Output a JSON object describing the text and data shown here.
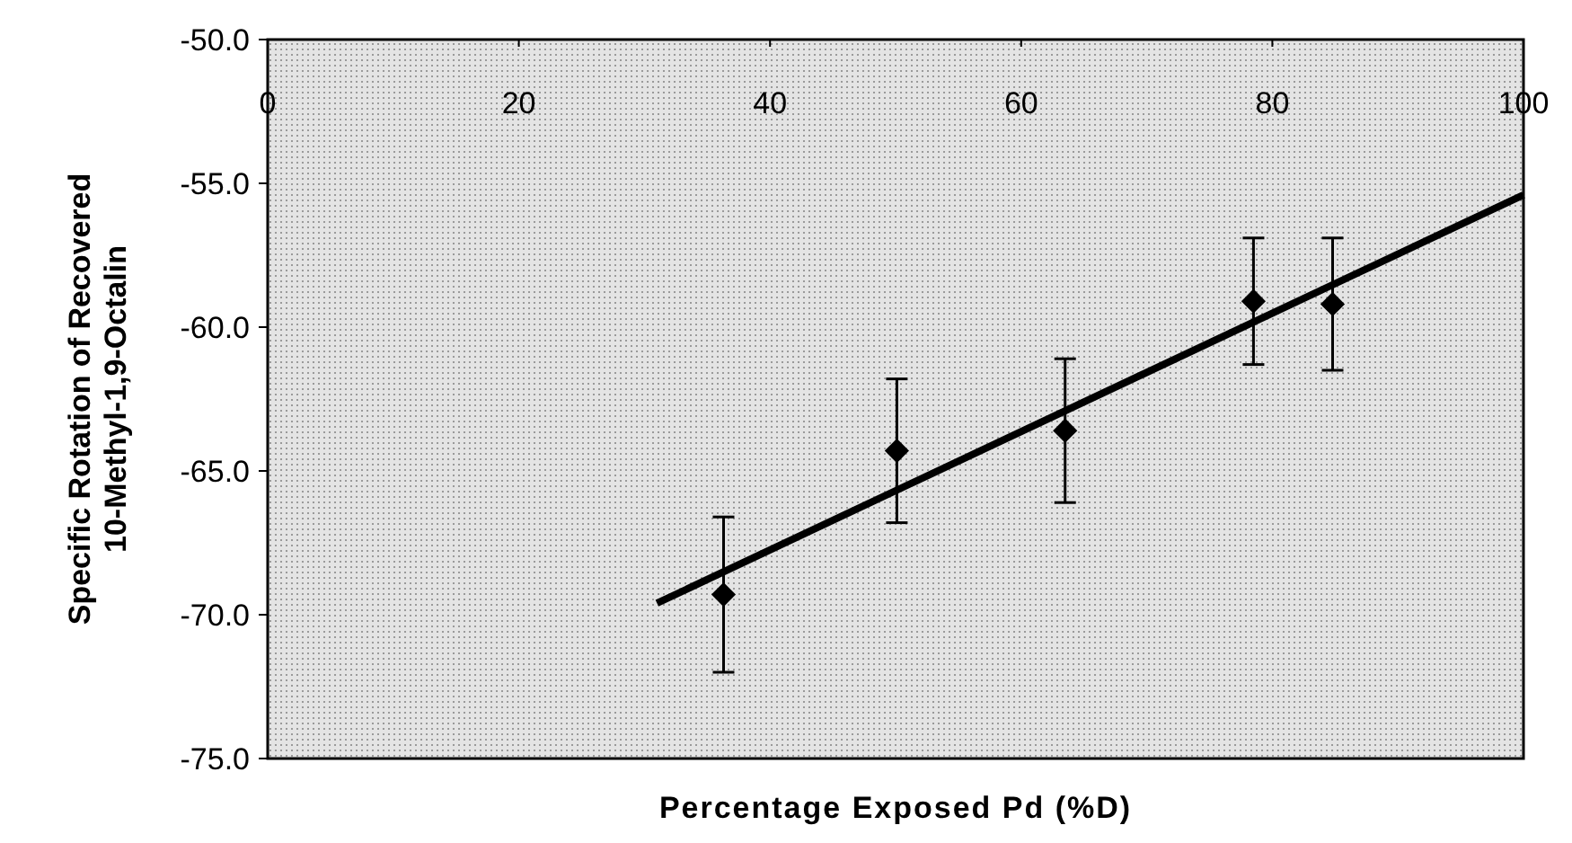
{
  "chart_data": {
    "type": "scatter",
    "xlabel": "Percentage Exposed Pd (%D)",
    "ylabel": "Specific Rotation of Recovered\n10-Methyl-1,9-Octalin",
    "xlim": [
      0,
      100
    ],
    "xticks": [
      0,
      20,
      40,
      60,
      80,
      100
    ],
    "ylim": [
      -75,
      -50
    ],
    "yticks": [
      {
        "value": -75,
        "label": "-75.0"
      },
      {
        "value": -70,
        "label": "-70.0"
      },
      {
        "value": -65,
        "label": "-65.0"
      },
      {
        "value": -60,
        "label": "-60.0"
      },
      {
        "value": -55,
        "label": "-55.0"
      },
      {
        "value": -50,
        "label": "-50.0"
      }
    ],
    "grid": false,
    "marker": "diamond",
    "series": [
      {
        "color": "#000000",
        "x": [
          36.3,
          50.1,
          63.5,
          78.5,
          84.8
        ],
        "values": [
          -69.3,
          -64.3,
          -63.6,
          -59.1,
          -59.2
        ],
        "errors": [
          2.7,
          2.5,
          2.5,
          2.2,
          2.3
        ]
      },
      {
        "type": "line",
        "color": "#000000",
        "x": [
          31,
          100
        ],
        "values": [
          -69.6,
          -55.4
        ],
        "line_style": "solid",
        "marker": "none"
      }
    ]
  }
}
